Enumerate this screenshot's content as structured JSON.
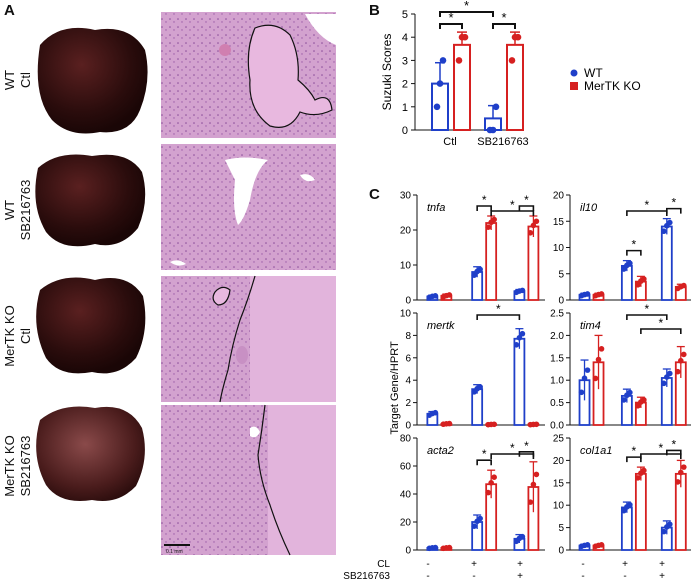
{
  "panels": {
    "a": {
      "letter": "A",
      "rows": [
        {
          "line1": "WT",
          "line2": "Ctl"
        },
        {
          "line1": "WT",
          "line2": "SB216763"
        },
        {
          "line1": "MerTK KO",
          "line2": "Ctl"
        },
        {
          "line1": "MerTK KO",
          "line2": "SB216763"
        }
      ],
      "scalebar_label": "0.1 mm"
    },
    "b": {
      "letter": "B"
    },
    "c": {
      "letter": "C"
    }
  },
  "colors": {
    "wt": "#1f3fc9",
    "ko": "#d62020",
    "tissue": "#d8a6d1",
    "liver": "#3a1414"
  },
  "legend": {
    "wt": "WT",
    "ko": "MerTK KO"
  },
  "treatment_rows": {
    "cl_label": "CL",
    "sb_label": "SB216763",
    "cl_signs": [
      "-",
      "-",
      "+",
      "+"
    ],
    "sb_signs": [
      "-",
      "-",
      "-",
      "+"
    ]
  },
  "star": "*",
  "chart_data": [
    {
      "type": "bar",
      "panel": "B",
      "ylabel": "Suzuki Scores",
      "categories": [
        "Ctl",
        "SB216763"
      ],
      "ylim": [
        0,
        5
      ],
      "yticks": [
        0,
        1,
        2,
        3,
        4,
        5
      ],
      "series": [
        {
          "name": "WT",
          "values": [
            2.0,
            0.5
          ],
          "points": [
            [
              1.0,
              2.0,
              3.0
            ],
            [
              0.0,
              0.0,
              1.0
            ]
          ],
          "err": [
            0.9,
            0.55
          ]
        },
        {
          "name": "MerTK KO",
          "values": [
            3.67,
            3.67
          ],
          "points": [
            [
              3.0,
              4.0,
              4.0
            ],
            [
              3.0,
              4.0,
              4.0
            ]
          ],
          "err": [
            0.55,
            0.55
          ]
        }
      ]
    },
    {
      "type": "bar",
      "panel": "C",
      "gene": "tnfa",
      "ylim": [
        0,
        30
      ],
      "yticks": [
        0,
        10,
        20,
        30
      ],
      "series": [
        {
          "name": "WT",
          "values": [
            1.0,
            8.0,
            2.5
          ],
          "err": [
            0.4,
            1.5,
            0.5
          ]
        },
        {
          "name": "MerTK KO",
          "values": [
            1.2,
            22.0,
            21.0
          ],
          "err": [
            0.5,
            2.0,
            3.0
          ]
        }
      ]
    },
    {
      "type": "bar",
      "panel": "C",
      "gene": "il10",
      "ylim": [
        0,
        20
      ],
      "yticks": [
        0,
        5,
        10,
        15,
        20
      ],
      "series": [
        {
          "name": "WT",
          "values": [
            1.0,
            6.5,
            14.0
          ],
          "err": [
            0.3,
            1.0,
            1.5
          ]
        },
        {
          "name": "MerTK KO",
          "values": [
            1.0,
            3.5,
            2.5
          ],
          "err": [
            0.3,
            1.0,
            0.5
          ]
        }
      ]
    },
    {
      "type": "bar",
      "panel": "C",
      "gene": "mertk",
      "ylim": [
        0,
        10
      ],
      "yticks": [
        0,
        2,
        4,
        6,
        8,
        10
      ],
      "series": [
        {
          "name": "WT",
          "values": [
            1.0,
            3.2,
            7.7
          ],
          "err": [
            0.2,
            0.4,
            0.9
          ]
        },
        {
          "name": "MerTK KO",
          "values": [
            0.1,
            0.05,
            0.05
          ],
          "err": [
            0.05,
            0.03,
            0.03
          ]
        }
      ]
    },
    {
      "type": "bar",
      "panel": "C",
      "gene": "tim4",
      "ylim": [
        0,
        2.5
      ],
      "yticks": [
        0.0,
        0.5,
        1.0,
        1.5,
        2.0,
        2.5
      ],
      "series": [
        {
          "name": "WT",
          "values": [
            1.0,
            0.65,
            1.05
          ],
          "err": [
            0.45,
            0.15,
            0.2
          ]
        },
        {
          "name": "MerTK KO",
          "values": [
            1.4,
            0.5,
            1.4
          ],
          "err": [
            0.6,
            0.12,
            0.35
          ]
        }
      ]
    },
    {
      "type": "bar",
      "panel": "C",
      "gene": "acta2",
      "ylim": [
        0,
        80
      ],
      "yticks": [
        0,
        20,
        40,
        60,
        80
      ],
      "series": [
        {
          "name": "WT",
          "values": [
            1.5,
            20.0,
            8.0
          ],
          "err": [
            0.5,
            5.0,
            3.0
          ]
        },
        {
          "name": "MerTK KO",
          "values": [
            1.5,
            47.0,
            45.0
          ],
          "err": [
            0.5,
            10.0,
            18.0
          ]
        }
      ]
    },
    {
      "type": "bar",
      "panel": "C",
      "gene": "col1a1",
      "ylim": [
        0,
        25
      ],
      "yticks": [
        0,
        5,
        10,
        15,
        20,
        25
      ],
      "series": [
        {
          "name": "WT",
          "values": [
            1.0,
            9.5,
            5.0
          ],
          "err": [
            0.3,
            1.2,
            1.5
          ]
        },
        {
          "name": "MerTK KO",
          "values": [
            1.0,
            17.0,
            17.0
          ],
          "err": [
            0.3,
            1.5,
            3.0
          ]
        }
      ]
    }
  ],
  "c_ylabel": "Target Gene/HPRT"
}
